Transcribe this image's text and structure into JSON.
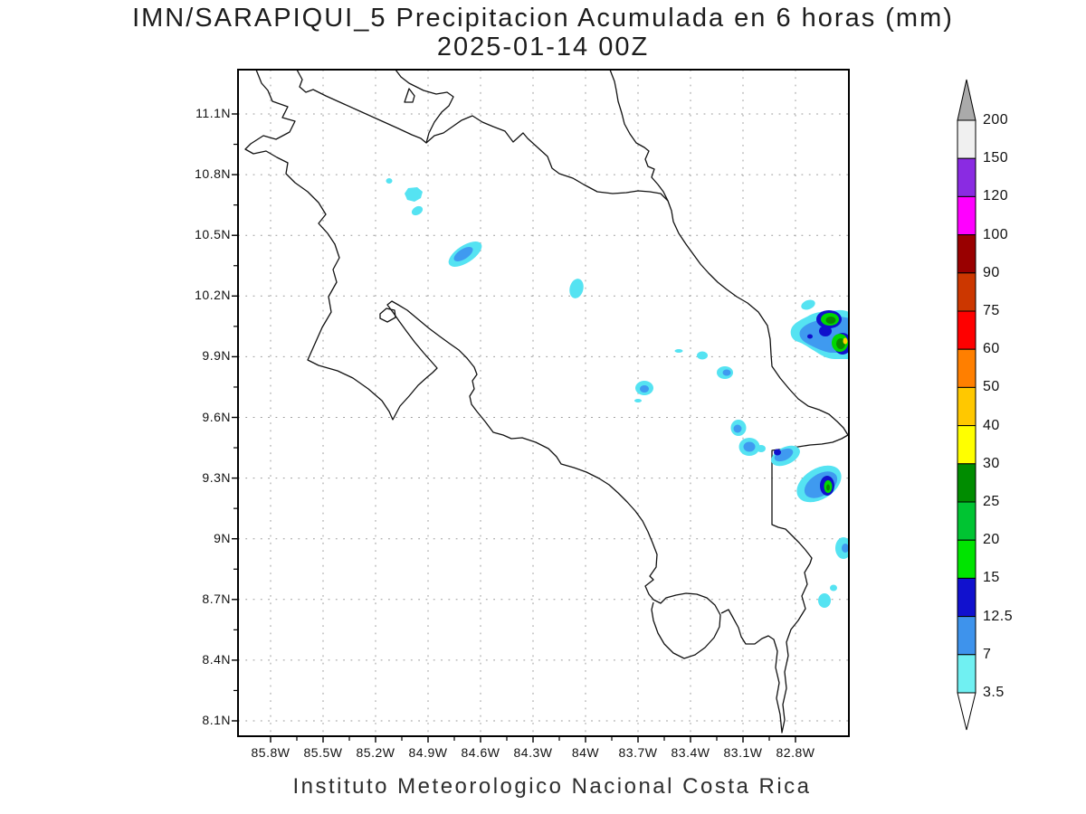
{
  "title": {
    "line1": "IMN/SARAPIQUI_5 Precipitacion Acumulada en 6 horas (mm)",
    "line2": "2025-01-14 00Z"
  },
  "footer": "Instituto Meteorologico Nacional Costa Rica",
  "map": {
    "lat_labels": [
      "11.1N",
      "10.8N",
      "10.5N",
      "10.2N",
      "9.9N",
      "9.6N",
      "9.3N",
      "9N",
      "8.7N",
      "8.4N",
      "8.1N"
    ],
    "lon_labels": [
      "85.8W",
      "85.5W",
      "85.2W",
      "84.9W",
      "84.6W",
      "84.3W",
      "84W",
      "83.7W",
      "83.4W",
      "83.1W",
      "82.8W"
    ]
  },
  "colorbar": {
    "labels_top_to_bottom": [
      "200",
      "150",
      "120",
      "100",
      "90",
      "75",
      "60",
      "50",
      "40",
      "30",
      "25",
      "20",
      "15",
      "12.5",
      "7",
      "3.5"
    ],
    "band_colors_top_to_bottom": [
      "#f0f0f0",
      "#8a2be2",
      "#ff00ff",
      "#990000",
      "#cc3700",
      "#fe0000",
      "#ff7f00",
      "#ffc800",
      "#ffff00",
      "#008c00",
      "#00c432",
      "#00e400",
      "#1111ce",
      "#3e93ec",
      "#70f0f2"
    ],
    "arrow_top_color": "#aaaaaa",
    "arrow_bottom_color": "#ffffff"
  },
  "palette": {
    "cyan_3_5_to_7": "#55e3f2",
    "blue_7_to_12_5": "#3f9af0",
    "navy_12_5_to_15": "#1010cc",
    "green_15_to_20": "#00d800",
    "dark_green_25_to_30": "#0a8a00",
    "yellow_30_to_40": "#ffd400",
    "coastline": "#111111",
    "gridline": "#9a9a9a"
  },
  "chart_data": {
    "type": "heatmap",
    "title": "IMN/SARAPIQUI_5 Precipitacion Acumulada en 6 horas (mm)",
    "subtitle": "2025-01-14 00Z",
    "xlabel_ticks_lon_west": [
      85.8,
      85.5,
      85.2,
      84.9,
      84.6,
      84.3,
      84.0,
      83.7,
      83.4,
      83.1,
      82.8
    ],
    "ylabel_ticks_lat_north": [
      11.1,
      10.8,
      10.5,
      10.2,
      9.9,
      9.6,
      9.3,
      9.0,
      8.7,
      8.4,
      8.1
    ],
    "grid": true,
    "legend_position": "right-colorbar",
    "colorbar_levels_mm": [
      3.5,
      7,
      12.5,
      15,
      20,
      25,
      30,
      40,
      50,
      60,
      75,
      90,
      100,
      120,
      150,
      200
    ],
    "region": "Costa Rica",
    "precip_features": [
      {
        "lon_w": 85.12,
        "lat_n": 10.77,
        "max_band_mm": "3.5-7"
      },
      {
        "lon_w": 85.01,
        "lat_n": 10.7,
        "max_band_mm": "3.5-7"
      },
      {
        "lon_w": 84.96,
        "lat_n": 10.62,
        "max_band_mm": "3.5-7"
      },
      {
        "lon_w": 84.69,
        "lat_n": 10.41,
        "max_band_mm": "7-12.5"
      },
      {
        "lon_w": 84.05,
        "lat_n": 10.24,
        "max_band_mm": "3.5-7"
      },
      {
        "lon_w": 82.64,
        "lat_n": 10.02,
        "max_band_mm": "30-40"
      },
      {
        "lon_w": 83.47,
        "lat_n": 9.93,
        "max_band_mm": "3.5-7"
      },
      {
        "lon_w": 83.33,
        "lat_n": 9.91,
        "max_band_mm": "3.5-7"
      },
      {
        "lon_w": 83.2,
        "lat_n": 9.83,
        "max_band_mm": "7-12.5"
      },
      {
        "lon_w": 83.66,
        "lat_n": 9.75,
        "max_band_mm": "7-12.5"
      },
      {
        "lon_w": 83.13,
        "lat_n": 9.55,
        "max_band_mm": "7-12.5"
      },
      {
        "lon_w": 83.06,
        "lat_n": 9.46,
        "max_band_mm": "7-12.5"
      },
      {
        "lon_w": 82.91,
        "lat_n": 9.43,
        "max_band_mm": "12.5-15"
      },
      {
        "lon_w": 82.61,
        "lat_n": 9.26,
        "max_band_mm": "20-25"
      },
      {
        "lon_w": 82.53,
        "lat_n": 8.96,
        "max_band_mm": "7-12.5"
      },
      {
        "lon_w": 82.58,
        "lat_n": 8.77,
        "max_band_mm": "3.5-7"
      },
      {
        "lon_w": 82.63,
        "lat_n": 8.7,
        "max_band_mm": "3.5-7"
      }
    ]
  }
}
